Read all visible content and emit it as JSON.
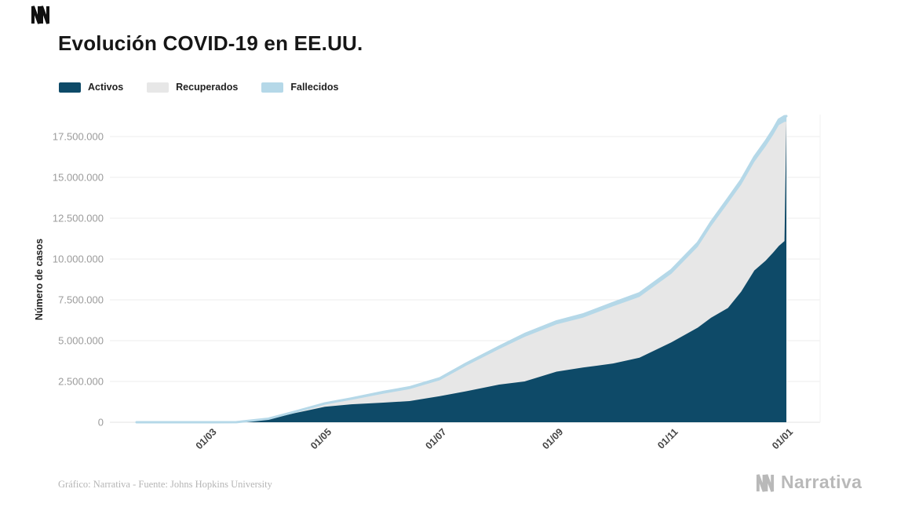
{
  "page": {
    "footer_source": "Gráfico: Narrativa - Fuente: Johns Hopkins University",
    "brand": "Narrativa"
  },
  "chart_data": {
    "type": "area",
    "stacked": true,
    "title": "Evolución COVID-19 en EE.UU.",
    "xlabel": "",
    "ylabel": "Número de casos",
    "ylim": [
      0,
      18750000
    ],
    "grid": "horizontal",
    "legend_position": "top-left",
    "x_dates": [
      "22/01",
      "01/03",
      "15/03",
      "01/04",
      "15/04",
      "01/05",
      "15/05",
      "01/06",
      "15/06",
      "01/07",
      "15/07",
      "01/08",
      "15/08",
      "01/09",
      "15/09",
      "01/10",
      "15/10",
      "01/11",
      "15/11",
      "24/11",
      "01/12",
      "08/12",
      "15/12",
      "21/12",
      "27/12",
      "30/12",
      "31/12",
      "01/01"
    ],
    "x_days": [
      0,
      39,
      53,
      70,
      84,
      100,
      114,
      131,
      145,
      161,
      175,
      192,
      206,
      223,
      237,
      253,
      267,
      284,
      298,
      305,
      314,
      321,
      328,
      334,
      338,
      341,
      344,
      345
    ],
    "series": [
      {
        "name": "Activos",
        "color": "#0e4a68",
        "values": [
          0,
          100,
          3000,
          180000,
          560000,
          950000,
          1100000,
          1200000,
          1300000,
          1600000,
          1900000,
          2300000,
          2500000,
          3100000,
          3350000,
          3600000,
          3950000,
          4900000,
          5800000,
          6400000,
          7000000,
          8000000,
          9300000,
          9900000,
          10400000,
          10800000,
          11100000,
          18400000
        ]
      },
      {
        "name": "Recuperados",
        "color": "#e7e7e7",
        "values": [
          0,
          10,
          1000,
          30000,
          60000,
          140000,
          270000,
          550000,
          730000,
          970000,
          1560000,
          2150000,
          2730000,
          2900000,
          3060000,
          3500000,
          3730000,
          4200000,
          4950000,
          5600000,
          6430000,
          6550000,
          6650000,
          7000000,
          7200000,
          7400000,
          7300000,
          0
        ]
      },
      {
        "name": "Fallecidos",
        "color": "#b5d8e8",
        "values": [
          0,
          1,
          100,
          4000,
          26000,
          65000,
          86000,
          105000,
          116000,
          127000,
          138000,
          153000,
          169000,
          184000,
          195000,
          207000,
          218000,
          231000,
          246000,
          260000,
          268000,
          285000,
          300000,
          315000,
          330000,
          340000,
          345000,
          350000
        ]
      }
    ],
    "x_ticks": [
      {
        "day": 39,
        "label": "01/03"
      },
      {
        "day": 100,
        "label": "01/05"
      },
      {
        "day": 161,
        "label": "01/07"
      },
      {
        "day": 223,
        "label": "01/09"
      },
      {
        "day": 284,
        "label": "01/11"
      },
      {
        "day": 345,
        "label": "01/01"
      }
    ],
    "y_ticks": [
      {
        "value": 0,
        "label": "0"
      },
      {
        "value": 2500000,
        "label": "2.500.000"
      },
      {
        "value": 5000000,
        "label": "5.000.000"
      },
      {
        "value": 7500000,
        "label": "7.500.000"
      },
      {
        "value": 10000000,
        "label": "10.000.000"
      },
      {
        "value": 12500000,
        "label": "12.500.000"
      },
      {
        "value": 15000000,
        "label": "15.000.000"
      },
      {
        "value": 17500000,
        "label": "17.500.000"
      }
    ]
  }
}
